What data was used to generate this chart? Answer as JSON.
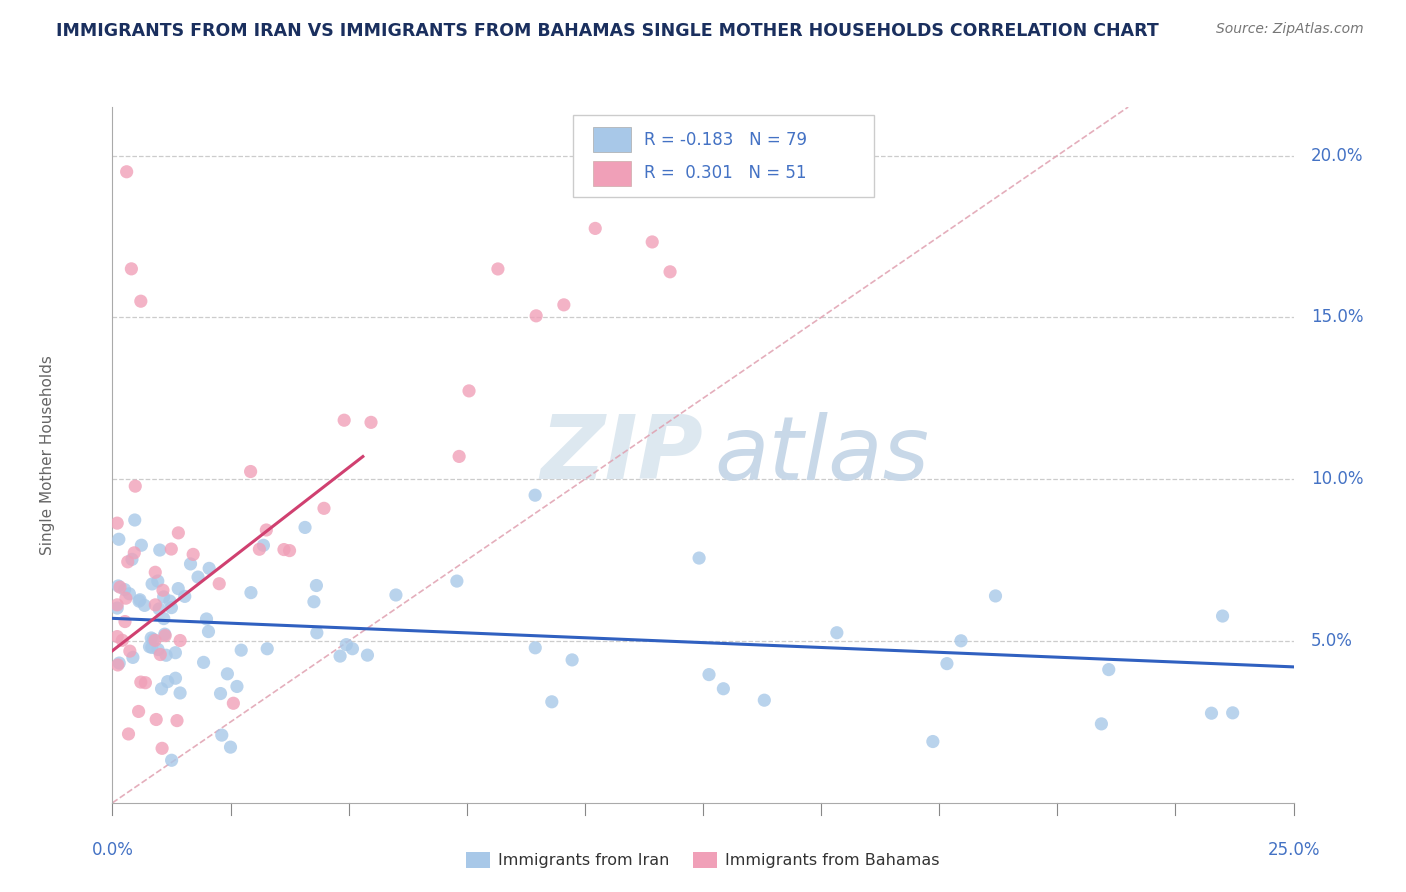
{
  "title": "IMMIGRANTS FROM IRAN VS IMMIGRANTS FROM BAHAMAS SINGLE MOTHER HOUSEHOLDS CORRELATION CHART",
  "source": "Source: ZipAtlas.com",
  "ylabel": "Single Mother Households",
  "right_yticks": [
    "20.0%",
    "15.0%",
    "10.0%",
    "5.0%"
  ],
  "right_ytick_vals": [
    0.2,
    0.15,
    0.1,
    0.05
  ],
  "iran_R": -0.183,
  "iran_N": 79,
  "bahamas_R": 0.301,
  "bahamas_N": 51,
  "color_iran": "#a8c8e8",
  "color_bahamas": "#f0a0b8",
  "color_line_iran": "#3060c0",
  "color_line_bahamas": "#d04070",
  "color_ref_line": "#e0a0b0",
  "color_title": "#1a2f5e",
  "color_source": "#777777",
  "color_axis_label": "#666666",
  "color_tick_blue": "#4472c4",
  "watermark_zip": "ZIP",
  "watermark_atlas": "atlas",
  "xmin": 0.0,
  "xmax": 0.25,
  "ymin": 0.0,
  "ymax": 0.215,
  "iran_line_x0": 0.0,
  "iran_line_x1": 0.25,
  "iran_line_y0": 0.057,
  "iran_line_y1": 0.042,
  "bahamas_line_x0": 0.0,
  "bahamas_line_x1": 0.053,
  "bahamas_line_y0": 0.047,
  "bahamas_line_y1": 0.107,
  "ref_line_x0": 0.0,
  "ref_line_x1": 0.215,
  "ref_line_y0": 0.0,
  "ref_line_y1": 0.215
}
